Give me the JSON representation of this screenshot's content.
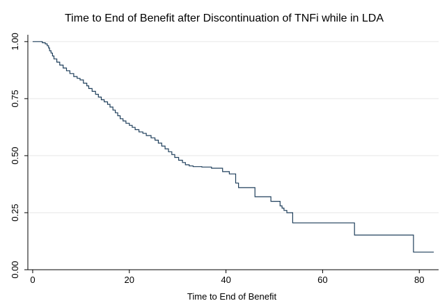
{
  "chart_data": {
    "type": "line",
    "title": "Time to End of Benefit after Discontinuation of TNFi while in LDA",
    "xlabel": "Time to End of Benefit",
    "ylabel": "",
    "xlim": [
      -1,
      84
    ],
    "ylim": [
      0,
      1.03
    ],
    "xticks": [
      0,
      20,
      40,
      60,
      80
    ],
    "xtick_labels": [
      "0",
      "20",
      "40",
      "60",
      "80"
    ],
    "yticks": [
      0,
      0.25,
      0.5,
      0.75,
      1
    ],
    "ytick_labels": [
      "0.00",
      "0.25",
      "0.50",
      "0.75",
      "1.00"
    ],
    "grid": true,
    "legend": "none",
    "line_color": "#1f3f5b",
    "step": true,
    "series": [
      {
        "x": [
          0,
          2.0,
          2.6,
          3.0,
          3.3,
          3.5,
          3.8,
          4.1,
          4.4,
          5.0,
          5.6,
          6.3,
          7.0,
          7.7,
          8.5,
          9.2,
          9.8,
          10.5,
          11.2,
          11.6,
          12.3,
          13.0,
          13.6,
          14.2,
          14.8,
          15.5,
          16.0,
          16.6,
          17.1,
          17.6,
          18.1,
          18.7,
          19.3,
          20.0,
          20.6,
          21.2,
          22.0,
          22.8,
          23.5,
          24.5,
          25.3,
          26.0,
          26.7,
          27.4,
          28.1,
          28.8,
          29.4,
          30.2,
          31.0,
          31.6,
          32.4,
          33.2,
          35.0,
          37.0,
          39.3,
          40.7,
          42.0,
          42.6,
          44.7,
          46.0,
          47.2,
          49.3,
          51.2,
          51.6,
          52.0,
          52.6,
          53.1,
          53.8,
          66.6,
          78.8,
          83.0
        ],
        "y": [
          1.0,
          0.995,
          0.99,
          0.982,
          0.972,
          0.96,
          0.95,
          0.937,
          0.924,
          0.91,
          0.897,
          0.884,
          0.872,
          0.86,
          0.847,
          0.839,
          0.832,
          0.818,
          0.806,
          0.794,
          0.782,
          0.769,
          0.757,
          0.745,
          0.736,
          0.725,
          0.713,
          0.7,
          0.688,
          0.675,
          0.662,
          0.652,
          0.642,
          0.633,
          0.624,
          0.614,
          0.604,
          0.598,
          0.588,
          0.578,
          0.568,
          0.555,
          0.542,
          0.53,
          0.517,
          0.505,
          0.492,
          0.48,
          0.47,
          0.46,
          0.455,
          0.452,
          0.45,
          0.445,
          0.43,
          0.42,
          0.38,
          0.36,
          0.36,
          0.32,
          0.32,
          0.3,
          0.28,
          0.27,
          0.26,
          0.25,
          0.25,
          0.205,
          0.152,
          0.077,
          0.077
        ]
      }
    ]
  }
}
